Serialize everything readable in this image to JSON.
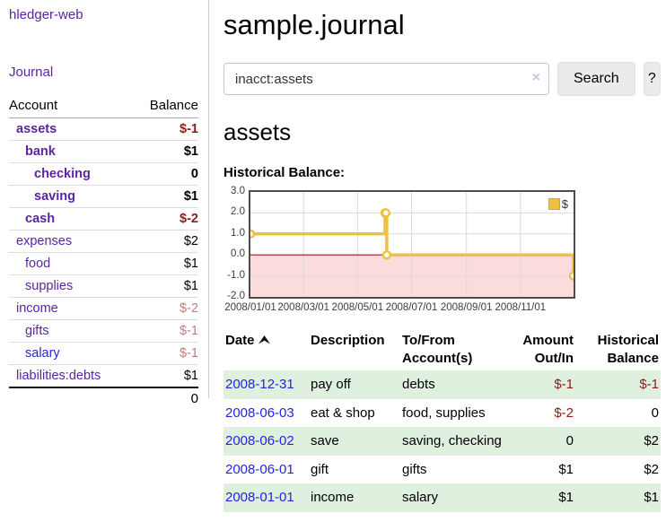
{
  "app": {
    "title": "hledger-web"
  },
  "sidebar": {
    "journal_label": "Journal",
    "accounts": {
      "headers": {
        "account": "Account",
        "balance": "Balance"
      },
      "rows": [
        {
          "name": "assets",
          "balance": "$-1",
          "depth": 0,
          "bold": true,
          "name_style": "purple",
          "balance_style": "neg-strong"
        },
        {
          "name": "bank",
          "balance": "$1",
          "depth": 1,
          "bold": true,
          "name_style": "purple",
          "balance_style": ""
        },
        {
          "name": "checking",
          "balance": "0",
          "depth": 2,
          "bold": true,
          "name_style": "purple",
          "balance_style": ""
        },
        {
          "name": "saving",
          "balance": "$1",
          "depth": 2,
          "bold": true,
          "name_style": "purple",
          "balance_style": ""
        },
        {
          "name": "cash",
          "balance": "$-2",
          "depth": 1,
          "bold": true,
          "name_style": "purple",
          "balance_style": "neg-strong"
        },
        {
          "name": "expenses",
          "balance": "$2",
          "depth": 0,
          "bold": false,
          "name_style": "purple",
          "balance_style": ""
        },
        {
          "name": "food",
          "balance": "$1",
          "depth": 1,
          "bold": false,
          "name_style": "purple",
          "balance_style": ""
        },
        {
          "name": "supplies",
          "balance": "$1",
          "depth": 1,
          "bold": false,
          "name_style": "purple",
          "balance_style": ""
        },
        {
          "name": "income",
          "balance": "$-2",
          "depth": 0,
          "bold": false,
          "name_style": "purple",
          "balance_style": "neg-soft"
        },
        {
          "name": "gifts",
          "balance": "$-1",
          "depth": 1,
          "bold": false,
          "name_style": "purple",
          "balance_style": "neg-soft"
        },
        {
          "name": "salary",
          "balance": "$-1",
          "depth": 1,
          "bold": false,
          "name_style": "blue",
          "balance_style": "neg-soft"
        },
        {
          "name": "liabilities:debts",
          "balance": "$1",
          "depth": 0,
          "bold": false,
          "name_style": "purple",
          "balance_style": ""
        }
      ],
      "total": "0"
    }
  },
  "main": {
    "title": "sample.journal",
    "search": {
      "value": "inacct:assets",
      "clear_icon": "×",
      "button_label": "Search",
      "help_label": "?"
    },
    "section_title": "assets",
    "chart_label": "Historical Balance:"
  },
  "chart_data": {
    "type": "line",
    "step": true,
    "title": "Historical Balance",
    "legend": "$",
    "legend_position": "top-right",
    "x_range": [
      "2008-01-01",
      "2008-12-31"
    ],
    "ylim": [
      -2,
      3
    ],
    "y_ticks": [
      "3.0",
      "2.0",
      "1.0",
      "0.0",
      "-1.0",
      "-2.0"
    ],
    "x_ticks": [
      "2008/01/01",
      "2008/03/01",
      "2008/05/01",
      "2008/07/01",
      "2008/09/01",
      "2008/11/01"
    ],
    "series": [
      {
        "name": "$",
        "color": "#edc240",
        "points": [
          [
            "2008-01-01",
            1
          ],
          [
            "2008-06-01",
            2
          ],
          [
            "2008-06-02",
            2
          ],
          [
            "2008-06-03",
            0
          ],
          [
            "2008-12-31",
            -1
          ]
        ]
      }
    ],
    "grid": true,
    "gridline_color": "#dadada",
    "border_color": "#4c4c4c",
    "zero_line_color": "#8e1a1a",
    "negative_region_fill": "#fadcdc",
    "marker": {
      "shape": "circle",
      "fill": "#ffffff",
      "stroke": "#edc240"
    }
  },
  "register_table": {
    "headers": {
      "date": "Date",
      "description": "Description",
      "tofrom": "To/From Account(s)",
      "amount": "Amount Out/In",
      "balance": "Historical Balance"
    },
    "rows": [
      {
        "date": "2008-12-31",
        "description": "pay off",
        "tofrom": "debts",
        "amount": "$-1",
        "amount_neg": true,
        "balance": "$-1",
        "balance_neg": true
      },
      {
        "date": "2008-06-03",
        "description": "eat & shop",
        "tofrom": "food, supplies",
        "amount": "$-2",
        "amount_neg": true,
        "balance": "0",
        "balance_neg": false
      },
      {
        "date": "2008-06-02",
        "description": "save",
        "tofrom": "saving, checking",
        "amount": "0",
        "amount_neg": false,
        "balance": "$2",
        "balance_neg": false
      },
      {
        "date": "2008-06-01",
        "description": "gift",
        "tofrom": "gifts",
        "amount": "$1",
        "amount_neg": false,
        "balance": "$2",
        "balance_neg": false
      },
      {
        "date": "2008-01-01",
        "description": "income",
        "tofrom": "salary",
        "amount": "$1",
        "amount_neg": false,
        "balance": "$1",
        "balance_neg": false
      }
    ]
  },
  "colors": {
    "link_purple": "#5b259f",
    "link_blue": "#2525d8",
    "negative_strong": "#8b1b1b",
    "negative_soft": "#c17d7d",
    "row_shade_green": "#dff0df",
    "series_gold": "#edc240"
  }
}
